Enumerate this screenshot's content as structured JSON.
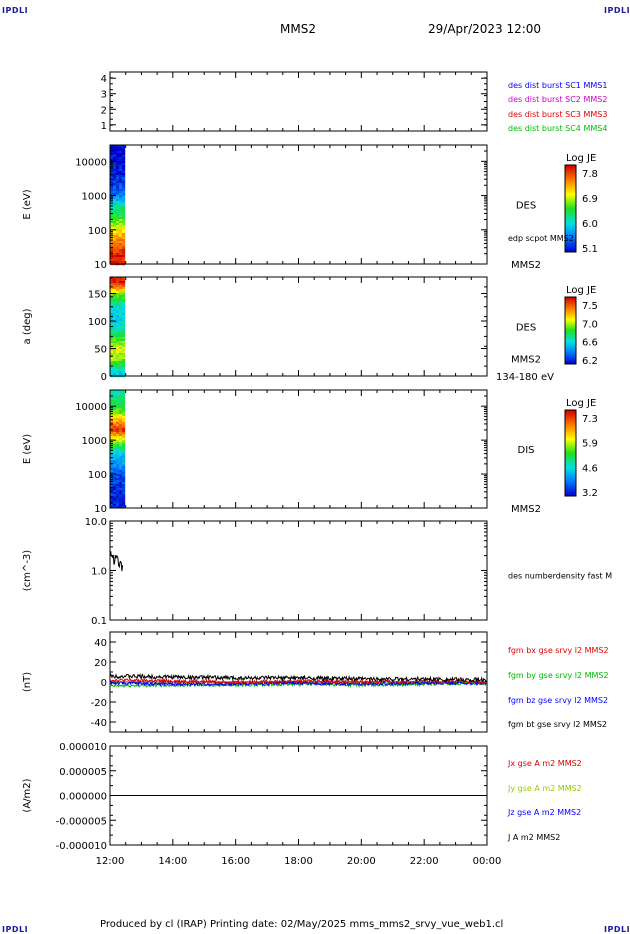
{
  "header": {
    "corner_labels": [
      "IPDLI",
      "IPDLI",
      "IPDLI",
      "IPDLI"
    ],
    "spacecraft": "MMS2",
    "datetime": "29/Apr/2023 12:00"
  },
  "footer": {
    "text": "Produced by cl (IRAP)   Printing date: 02/May/2025   mms_mms2_srvy_vue_web1.cl"
  },
  "chart_data": [
    {
      "type": "line",
      "panel": "availability",
      "ylabel": "",
      "ylim": [
        0.6,
        4.4
      ],
      "yticks": [
        "1",
        "2",
        "3",
        "4"
      ],
      "legend_placement": "right",
      "series": [
        {
          "name": "des dist burst SC1 MMS1",
          "color": "#0000ff",
          "values": []
        },
        {
          "name": "des dist burst SC2 MMS2",
          "color": "#cc00cc",
          "values": []
        },
        {
          "name": "des dist burst SC3 MMS3",
          "color": "#dd0000",
          "values": []
        },
        {
          "name": "des dist burst SC4 MMS4",
          "color": "#00bb00",
          "values": []
        }
      ]
    },
    {
      "type": "heatmap",
      "panel": "des-energy",
      "ylabel": "E (eV)",
      "log_y": true,
      "ylim": [
        10,
        30000
      ],
      "yticks": [
        "10",
        "100",
        "1000",
        "10000"
      ],
      "instrument_label": "DES",
      "overlay_label": "edp scpot MMS2",
      "spacecraft_label": "MMS2",
      "colorbar": {
        "label": "Log JE",
        "ticks": [
          "7.8",
          "6.9",
          "6.0",
          "5.1"
        ]
      },
      "data_x_range": [
        "12:00",
        "12:24"
      ],
      "profile": [
        {
          "y": 20,
          "level": 0.95
        },
        {
          "y": 40,
          "level": 0.85
        },
        {
          "y": 80,
          "level": 0.75
        },
        {
          "y": 150,
          "level": 0.6
        },
        {
          "y": 300,
          "level": 0.48
        },
        {
          "y": 600,
          "level": 0.35
        },
        {
          "y": 1200,
          "level": 0.15
        },
        {
          "y": 5000,
          "level": 0.05
        },
        {
          "y": 25000,
          "level": 0.0
        }
      ]
    },
    {
      "type": "heatmap",
      "panel": "des-pitch-angle",
      "ylabel": "a (deg)",
      "ylim": [
        0,
        180
      ],
      "yticks": [
        "0",
        "50",
        "100",
        "150"
      ],
      "instrument_label": "DES",
      "spacecraft_label": "MMS2",
      "energy_label": "134-180 eV",
      "colorbar": {
        "label": "Log JE",
        "ticks": [
          "7.5",
          "7.0",
          "6.6",
          "6.2"
        ]
      },
      "data_x_range": [
        "12:00",
        "12:24"
      ],
      "profile": [
        {
          "y": 10,
          "level": 0.3
        },
        {
          "y": 30,
          "level": 0.55
        },
        {
          "y": 50,
          "level": 0.65
        },
        {
          "y": 70,
          "level": 0.5
        },
        {
          "y": 90,
          "level": 0.35
        },
        {
          "y": 110,
          "level": 0.3
        },
        {
          "y": 130,
          "level": 0.35
        },
        {
          "y": 150,
          "level": 0.55
        },
        {
          "y": 170,
          "level": 0.95
        }
      ]
    },
    {
      "type": "heatmap",
      "panel": "dis-energy",
      "ylabel": "E (eV)",
      "log_y": true,
      "ylim": [
        10,
        30000
      ],
      "yticks": [
        "10",
        "100",
        "1000",
        "10000"
      ],
      "instrument_label": "DIS",
      "spacecraft_label": "MMS2",
      "colorbar": {
        "label": "Log JE",
        "ticks": [
          "7.3",
          "5.9",
          "4.6",
          "3.2"
        ]
      },
      "data_x_range": [
        "12:00",
        "12:24"
      ],
      "profile": [
        {
          "y": 20,
          "level": 0.05
        },
        {
          "y": 100,
          "level": 0.12
        },
        {
          "y": 500,
          "level": 0.35
        },
        {
          "y": 1200,
          "level": 0.7
        },
        {
          "y": 2200,
          "level": 0.95
        },
        {
          "y": 4000,
          "level": 0.75
        },
        {
          "y": 8000,
          "level": 0.5
        },
        {
          "y": 20000,
          "level": 0.4
        }
      ]
    },
    {
      "type": "line",
      "panel": "density",
      "ylabel": "(cm^-3)",
      "log_y": true,
      "ylim": [
        0.1,
        10.0
      ],
      "yticks": [
        "0.1",
        "1.0",
        "10.0"
      ],
      "series": [
        {
          "name": "des numberdensity fast M",
          "color": "#000000",
          "x": [
            "12:00",
            "12:04",
            "12:08",
            "12:12",
            "12:16",
            "12:20",
            "12:24"
          ],
          "values": [
            2.0,
            2.3,
            1.5,
            2.0,
            1.2,
            1.6,
            1.0
          ]
        }
      ]
    },
    {
      "type": "line",
      "panel": "magnetic-field",
      "ylabel": "(nT)",
      "ylim": [
        -50,
        50
      ],
      "yticks": [
        "-40",
        "-20",
        "0",
        "20",
        "40"
      ],
      "series": [
        {
          "name": "fgm bx gse srvy l2 MMS2",
          "color": "#dd0000",
          "x": [
            "12:00",
            "14:00",
            "16:00",
            "18:00",
            "20:00",
            "22:00",
            "00:00"
          ],
          "values": [
            2,
            1,
            0,
            1,
            0,
            1,
            0
          ]
        },
        {
          "name": "fgm by gse srvy l2 MMS2",
          "color": "#00bb00",
          "x": [
            "12:00",
            "14:00",
            "16:00",
            "18:00",
            "20:00",
            "22:00",
            "00:00"
          ],
          "values": [
            -4,
            -3,
            -3,
            -2,
            -3,
            -2,
            -1
          ]
        },
        {
          "name": "fgm bz gse srvy l2 MMS2",
          "color": "#0000ff",
          "x": [
            "12:00",
            "14:00",
            "16:00",
            "18:00",
            "20:00",
            "22:00",
            "00:00"
          ],
          "values": [
            -1,
            -2,
            -2,
            -1,
            -2,
            -1,
            -1
          ]
        },
        {
          "name": "fgm bt gse srvy l2 MMS2",
          "color": "#000000",
          "x": [
            "12:00",
            "14:00",
            "16:00",
            "18:00",
            "20:00",
            "22:00",
            "00:00"
          ],
          "values": [
            6,
            5,
            4,
            4,
            3,
            3,
            2
          ]
        }
      ]
    },
    {
      "type": "line",
      "panel": "current-density",
      "ylabel": "(A/m2)",
      "ylim": [
        -1e-05,
        1e-05
      ],
      "yticks": [
        "-0.000010",
        "-0.000005",
        "0.000000",
        "0.000005",
        "0.000010"
      ],
      "xlabel": "",
      "xticks": [
        "12:00",
        "14:00",
        "16:00",
        "18:00",
        "20:00",
        "22:00",
        "00:00"
      ],
      "series": [
        {
          "name": "Jx gse A m2 MMS2",
          "color": "#dd0000",
          "values": []
        },
        {
          "name": "Jy gse A m2 MMS2",
          "color": "#99cc00",
          "values": []
        },
        {
          "name": "Jz gse A m2 MMS2",
          "color": "#0000ff",
          "values": []
        },
        {
          "name": "J A m2 MMS2",
          "color": "#000000",
          "x": [
            "12:00",
            "14:00",
            "16:00",
            "18:00",
            "20:00",
            "22:00",
            "00:00"
          ],
          "values": [
            0,
            0,
            0,
            0,
            0,
            0,
            0
          ]
        }
      ]
    }
  ]
}
